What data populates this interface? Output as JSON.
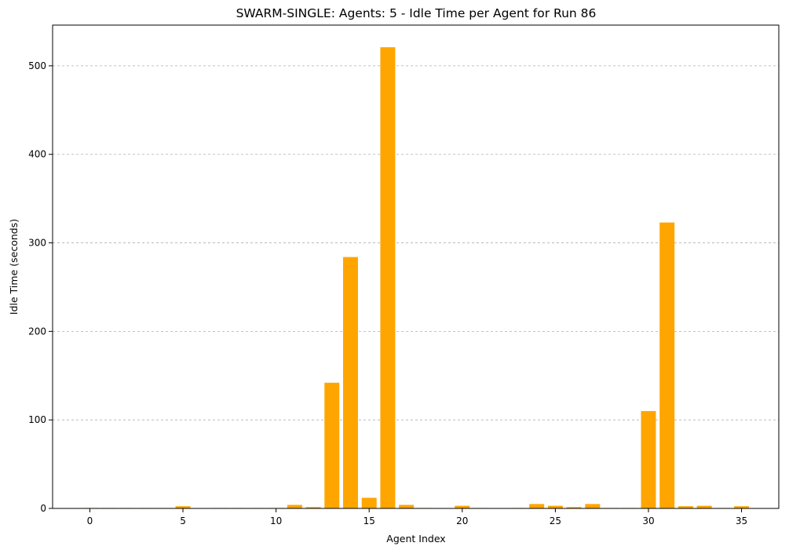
{
  "chart_data": {
    "type": "bar",
    "title": "SWARM-SINGLE: Agents: 5 - Idle Time per Agent for Run 86",
    "xlabel": "Agent Index",
    "ylabel": "Idle Time (seconds)",
    "x": [
      0,
      1,
      2,
      3,
      4,
      5,
      6,
      7,
      8,
      9,
      10,
      11,
      12,
      13,
      14,
      15,
      16,
      17,
      18,
      19,
      20,
      21,
      22,
      23,
      24,
      25,
      26,
      27,
      28,
      29,
      30,
      31,
      32,
      33,
      34,
      35
    ],
    "values": [
      0.5,
      0.5,
      0.5,
      0.5,
      0.5,
      2.5,
      0,
      0.5,
      0.5,
      0.5,
      0.5,
      4,
      1.5,
      142,
      284,
      12,
      521,
      4,
      0.5,
      0,
      3,
      0.5,
      0,
      0.5,
      5,
      3,
      1.5,
      5,
      0.5,
      0.5,
      110,
      323,
      2.5,
      3,
      0.5,
      2.5
    ],
    "xlim": [
      -2,
      37
    ],
    "ylim": [
      0,
      546
    ],
    "xticks": [
      0,
      5,
      10,
      15,
      20,
      25,
      30,
      35
    ],
    "yticks": [
      0,
      100,
      200,
      300,
      400,
      500
    ],
    "bar_color": "#ffa500",
    "grid": "y-dashed",
    "legend": "none"
  }
}
